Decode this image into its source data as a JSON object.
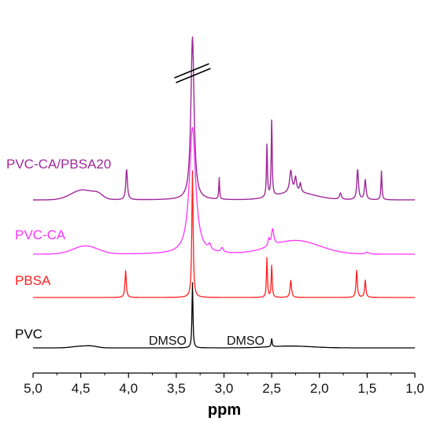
{
  "chart_data": {
    "type": "line",
    "xlabel": "ppm",
    "ylabel": "",
    "xlim": [
      5.0,
      1.0
    ],
    "x_reversed": true,
    "xticks": [
      5.0,
      4.5,
      4.0,
      3.5,
      3.0,
      2.5,
      2.0,
      1.5,
      1.0
    ],
    "xtick_labels": [
      "5,0",
      "4,5",
      "4,0",
      "3,5",
      "3,0",
      "2,5",
      "2,0",
      "1,5",
      "1,0"
    ],
    "grid": false,
    "legend": "none",
    "series": [
      {
        "name": "PVC",
        "color": "#000000",
        "baseline": 0,
        "humps": [
          [
            4.5,
            0.09,
            0.09
          ],
          [
            4.38,
            0.07,
            0.06
          ],
          [
            2.3,
            0.1,
            0.22
          ]
        ],
        "peaks": [
          [
            3.33,
            3.6,
            0.006
          ],
          [
            2.5,
            0.45,
            0.006
          ]
        ],
        "annotations": [
          "DMSO",
          "DMSO"
        ]
      },
      {
        "name": "PBSA",
        "color": "#ff2020",
        "baseline": 3,
        "humps": [],
        "peaks": [
          [
            4.03,
            1.5,
            0.008
          ],
          [
            3.33,
            7.0,
            0.008
          ],
          [
            2.55,
            2.2,
            0.006
          ],
          [
            2.5,
            1.8,
            0.006
          ],
          [
            2.3,
            0.95,
            0.009
          ],
          [
            1.61,
            1.5,
            0.008
          ],
          [
            1.52,
            0.95,
            0.008
          ]
        ]
      },
      {
        "name": "PVC-CA",
        "color": "#ff33ff",
        "baseline": 6,
        "humps": [
          [
            4.45,
            0.45,
            0.13
          ],
          [
            2.25,
            0.75,
            0.25
          ]
        ],
        "peaks": [
          [
            3.33,
            7.0,
            0.04
          ],
          [
            3.15,
            0.3,
            0.015
          ],
          [
            3.02,
            0.25,
            0.015
          ],
          [
            2.49,
            0.9,
            0.015
          ],
          [
            2.53,
            0.4,
            0.01
          ],
          [
            1.5,
            0.1,
            0.02
          ]
        ]
      },
      {
        "name": "PVC-CA/PBSA20",
        "color": "#a0289b",
        "baseline": 10,
        "humps": [
          [
            4.48,
            0.55,
            0.12
          ],
          [
            4.32,
            0.2,
            0.05
          ],
          [
            2.25,
            0.4,
            0.2
          ]
        ],
        "peaks": [
          [
            4.02,
            1.7,
            0.01
          ],
          [
            3.33,
            9.0,
            0.02
          ],
          [
            3.05,
            1.2,
            0.005
          ],
          [
            2.55,
            2.9,
            0.006
          ],
          [
            2.5,
            4.3,
            0.006
          ],
          [
            2.3,
            1.2,
            0.015
          ],
          [
            2.25,
            0.8,
            0.012
          ],
          [
            2.2,
            0.5,
            0.01
          ],
          [
            1.78,
            0.35,
            0.012
          ],
          [
            1.6,
            1.7,
            0.01
          ],
          [
            1.52,
            1.1,
            0.01
          ],
          [
            1.35,
            1.6,
            0.006
          ]
        ]
      }
    ],
    "axis_break": true
  }
}
